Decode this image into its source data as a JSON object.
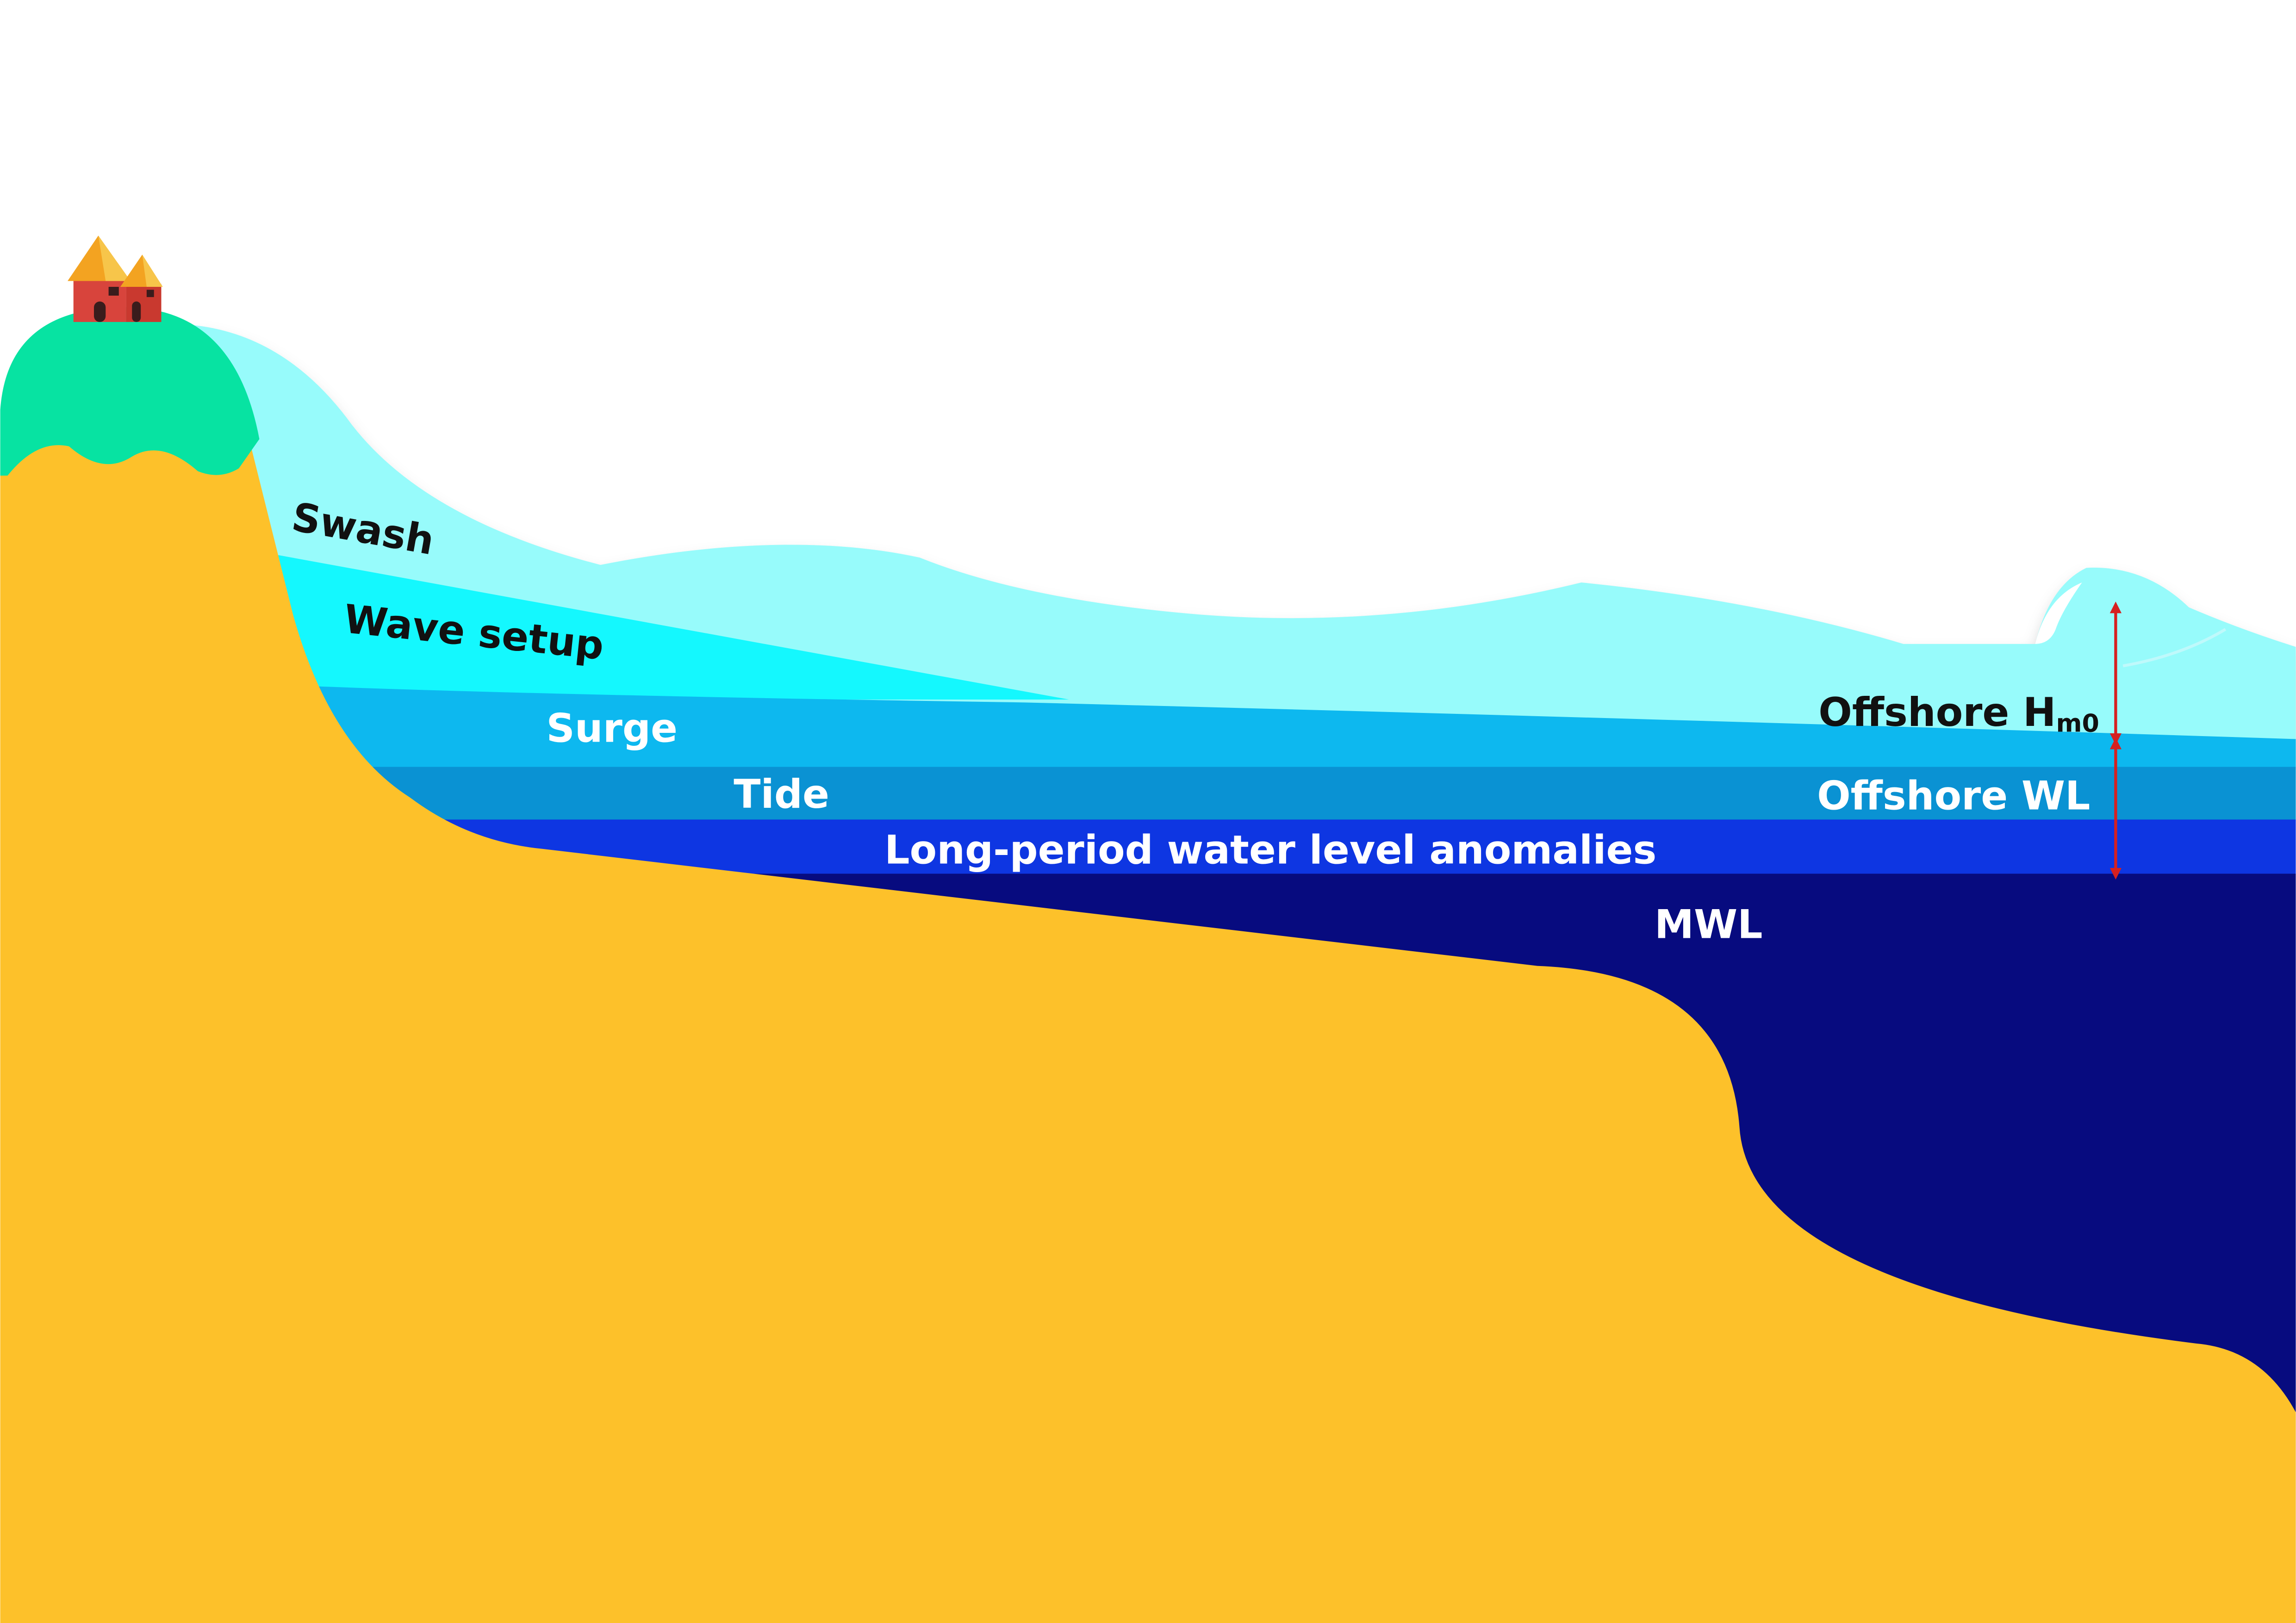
{
  "labels": {
    "swash": "Swash",
    "wave_setup": "Wave setup",
    "surge": "Surge",
    "tide": "Tide",
    "long_period": "Long-period water level anomalies",
    "mwl": "MWL",
    "offshore_hm0_main": "Offshore H",
    "offshore_hm0_sub": "m0",
    "offshore_wl": "Offshore WL"
  },
  "colors": {
    "sand": "#fdc12a",
    "hill": "#07e3a2",
    "swash_water": "#97fbfb",
    "wave_setup_water": "#14f8fe",
    "surge_water": "#0db8ef",
    "tide_water": "#0a92d3",
    "long_period_water": "#0e36e2",
    "deep_water": "#070b7f",
    "arrow": "#d62020",
    "label_dark": "#111111",
    "label_light": "#ffffff",
    "house_wall": "#d8443c",
    "house_roof": "#f3a321"
  }
}
